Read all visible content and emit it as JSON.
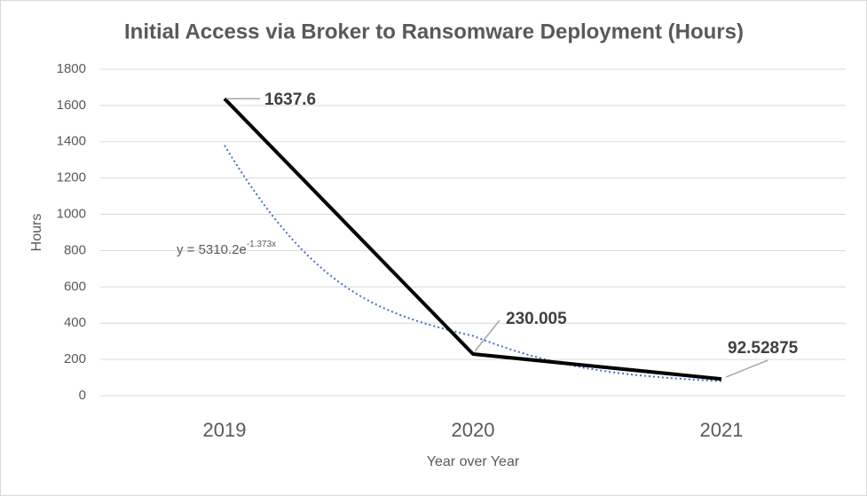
{
  "chart_data": {
    "type": "line",
    "title": "Initial Access via Broker to Ransomware Deployment (Hours)",
    "x_label": "Year over Year",
    "y_label": "Hours",
    "categories": [
      "2019",
      "2020",
      "2021"
    ],
    "series": [
      {
        "color": "#000000",
        "values": [
          1637.6,
          230.005,
          92.52875
        ]
      }
    ],
    "trendline": {
      "label": "y = 5310.2e",
      "exponent": "-1.373x",
      "color": "#4472c4",
      "values": [
        1380,
        330,
        80
      ]
    },
    "ylim": [
      0,
      1800
    ],
    "yticks": [
      0,
      200,
      400,
      600,
      800,
      1000,
      1200,
      1400,
      1600,
      1800
    ],
    "grid": true
  }
}
